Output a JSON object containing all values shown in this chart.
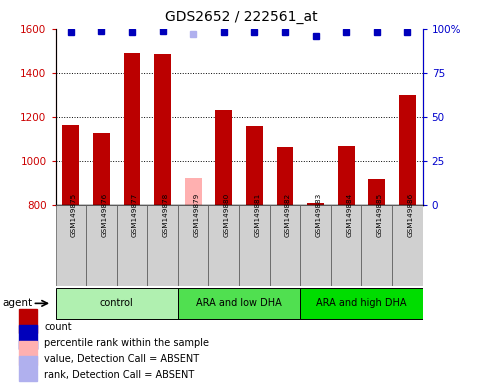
{
  "title": "GDS2652 / 222561_at",
  "samples": [
    "GSM149875",
    "GSM149876",
    "GSM149877",
    "GSM149878",
    "GSM149879",
    "GSM149880",
    "GSM149881",
    "GSM149882",
    "GSM149883",
    "GSM149884",
    "GSM149885",
    "GSM149886"
  ],
  "counts": [
    1165,
    1130,
    1490,
    1485,
    925,
    1230,
    1160,
    1065,
    810,
    1070,
    920,
    1300
  ],
  "absent_flags": [
    false,
    false,
    false,
    false,
    true,
    false,
    false,
    false,
    false,
    false,
    false,
    false
  ],
  "percentile_ranks": [
    98,
    99,
    98,
    99,
    97,
    98,
    98,
    98,
    96,
    98,
    98,
    98
  ],
  "percentile_absent_flags": [
    false,
    false,
    false,
    false,
    true,
    false,
    false,
    false,
    false,
    false,
    false,
    false
  ],
  "ylim_left": [
    800,
    1600
  ],
  "ylim_right": [
    0,
    100
  ],
  "yticks_left": [
    800,
    1000,
    1200,
    1400,
    1600
  ],
  "yticks_right": [
    0,
    25,
    50,
    75,
    100
  ],
  "groups": [
    {
      "label": "control",
      "start": 0,
      "end": 4,
      "color": "#b0f0b0"
    },
    {
      "label": "ARA and low DHA",
      "start": 4,
      "end": 8,
      "color": "#50e050"
    },
    {
      "label": "ARA and high DHA",
      "start": 8,
      "end": 12,
      "color": "#00dd00"
    }
  ],
  "bar_color_present": "#bb0000",
  "bar_color_absent": "#ffb0b0",
  "dot_color_present": "#0000bb",
  "dot_color_absent": "#b0b0ee",
  "bar_width": 0.55,
  "left_tick_color": "#cc0000",
  "right_tick_color": "#0000cc",
  "grid_color": "black",
  "legend_items": [
    {
      "label": "count",
      "color": "#bb0000"
    },
    {
      "label": "percentile rank within the sample",
      "color": "#0000bb"
    },
    {
      "label": "value, Detection Call = ABSENT",
      "color": "#ffb0b0"
    },
    {
      "label": "rank, Detection Call = ABSENT",
      "color": "#b0b0ee"
    }
  ],
  "agent_label": "agent"
}
